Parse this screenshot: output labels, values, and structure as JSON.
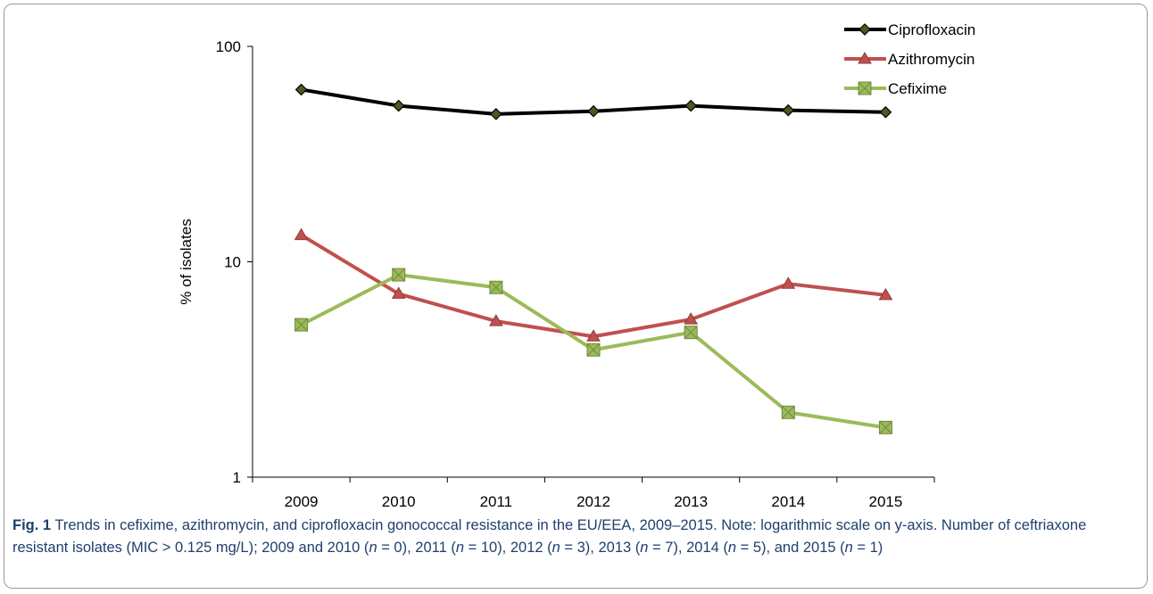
{
  "figure": {
    "label": "Fig. 1",
    "caption_parts": [
      {
        "t": " Trends in cefixime, azithromycin, and ciprofloxacin gonococcal resistance in the EU/EEA, 2009–2015. Note: logarithmic scale on y-axis. Number of ceftriaxone resistant isolates (MIC > 0.125 mg/L); 2009 and 2010 (",
        "i": false
      },
      {
        "t": "n",
        "i": true
      },
      {
        "t": " = 0), 2011 (",
        "i": false
      },
      {
        "t": "n",
        "i": true
      },
      {
        "t": " = 10), 2012 (",
        "i": false
      },
      {
        "t": "n",
        "i": true
      },
      {
        "t": " = 3), 2013 (",
        "i": false
      },
      {
        "t": "n",
        "i": true
      },
      {
        "t": " = 7), 2014 (",
        "i": false
      },
      {
        "t": "n",
        "i": true
      },
      {
        "t": " = 5), and 2015 (",
        "i": false
      },
      {
        "t": "n",
        "i": true
      },
      {
        "t": " = 1)",
        "i": false
      }
    ]
  },
  "chart_data": {
    "type": "line",
    "categories": [
      "2009",
      "2010",
      "2011",
      "2012",
      "2013",
      "2014",
      "2015"
    ],
    "ylabel": "% of  isolates",
    "yscale": "log",
    "ylim": [
      1,
      100
    ],
    "yticks": [
      "1",
      "10",
      "100"
    ],
    "grid": false,
    "legend_position": "top-right",
    "series": [
      {
        "name": "Ciprofloxacin",
        "color": "#000000",
        "marker": "diamond",
        "marker_color": "#4a5a1e",
        "values": [
          63,
          53,
          48.5,
          50,
          53,
          50.5,
          49.5
        ]
      },
      {
        "name": "Azithromycin",
        "color": "#c0504d",
        "marker": "triangle",
        "marker_color": "#c0504d",
        "values": [
          13.3,
          7.1,
          5.3,
          4.5,
          5.4,
          7.9,
          7.0
        ]
      },
      {
        "name": "Cefixime",
        "color": "#9bbb59",
        "marker": "square-x",
        "marker_color": "#9bbb59",
        "values": [
          5.1,
          8.7,
          7.6,
          3.9,
          4.7,
          2.0,
          1.7
        ]
      }
    ]
  }
}
